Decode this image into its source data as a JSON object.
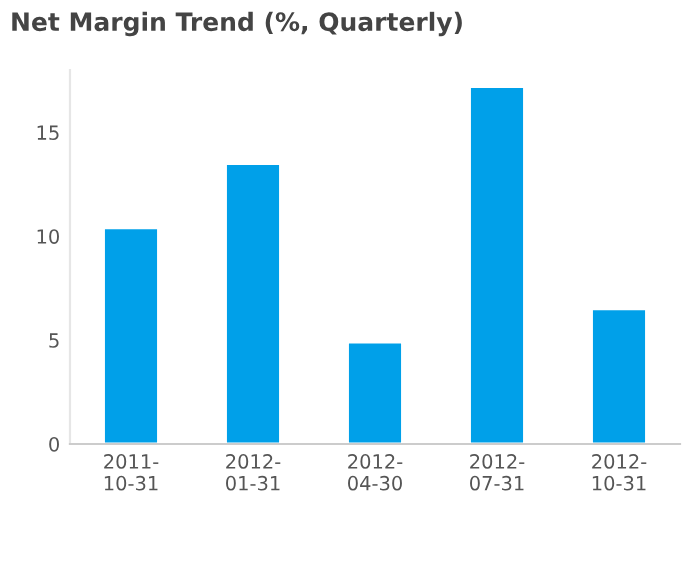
{
  "chart_data": {
    "type": "bar",
    "title": "Net Margin Trend (%, Quarterly)",
    "categories": [
      "2011-\n10-31",
      "2012-\n01-31",
      "2012-\n04-30",
      "2012-\n07-31",
      "2012-\n10-31"
    ],
    "series": [
      {
        "color": "#00a0e9",
        "values": [
          10.4,
          13.5,
          4.9,
          17.2,
          6.5
        ]
      }
    ],
    "ylim": [
      0,
      18
    ],
    "yticks": [
      0,
      5,
      10,
      15
    ]
  }
}
